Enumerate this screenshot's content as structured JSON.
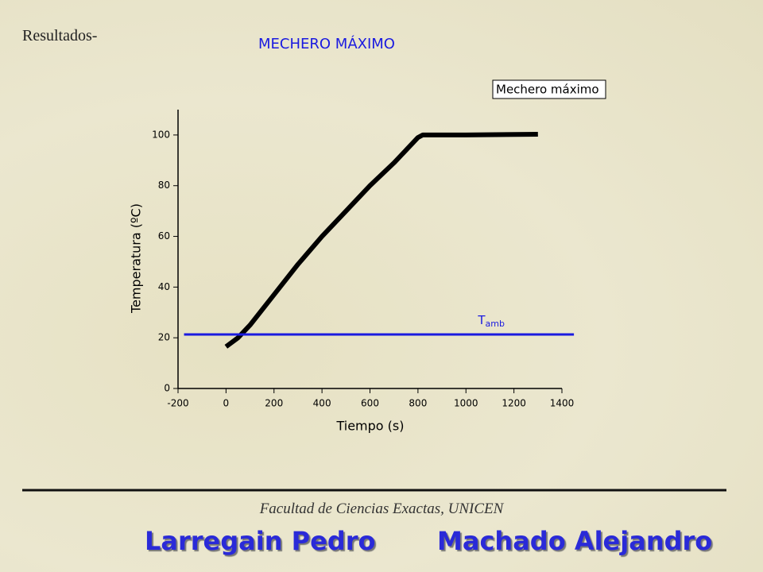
{
  "header": {
    "section": "Resultados-"
  },
  "chart_data": {
    "type": "line",
    "title": "MECHERO MÁXIMO",
    "x_label": "Tiempo (s)",
    "y_label": "Temperatura (ºC)",
    "xlim": [
      -200,
      1400
    ],
    "ylim": [
      0,
      110
    ],
    "xticks": [
      -200,
      0,
      200,
      400,
      600,
      800,
      1000,
      1200,
      1400
    ],
    "yticks": [
      0,
      20,
      40,
      60,
      80,
      100
    ],
    "series": [
      {
        "name": "Mechero máximo",
        "color": "#000000",
        "x": [
          0,
          50,
          100,
          200,
          300,
          400,
          500,
          600,
          700,
          800,
          820,
          1000,
          1300
        ],
        "values": [
          16.5,
          20,
          25,
          37,
          49,
          60,
          70,
          80,
          89,
          99,
          100,
          100,
          100.3
        ]
      },
      {
        "color": "#1a1ae0",
        "x": [
          -175,
          1450
        ],
        "values": [
          21.3,
          21.3
        ]
      }
    ],
    "annotations": [
      {
        "text": "T",
        "subscript": "amb",
        "x": 1050,
        "y": 27
      }
    ]
  },
  "footer": {
    "institution": "Facultad de Ciencias Exactas, UNICEN",
    "authors": [
      "Larregain Pedro",
      "Machado Alejandro"
    ]
  }
}
